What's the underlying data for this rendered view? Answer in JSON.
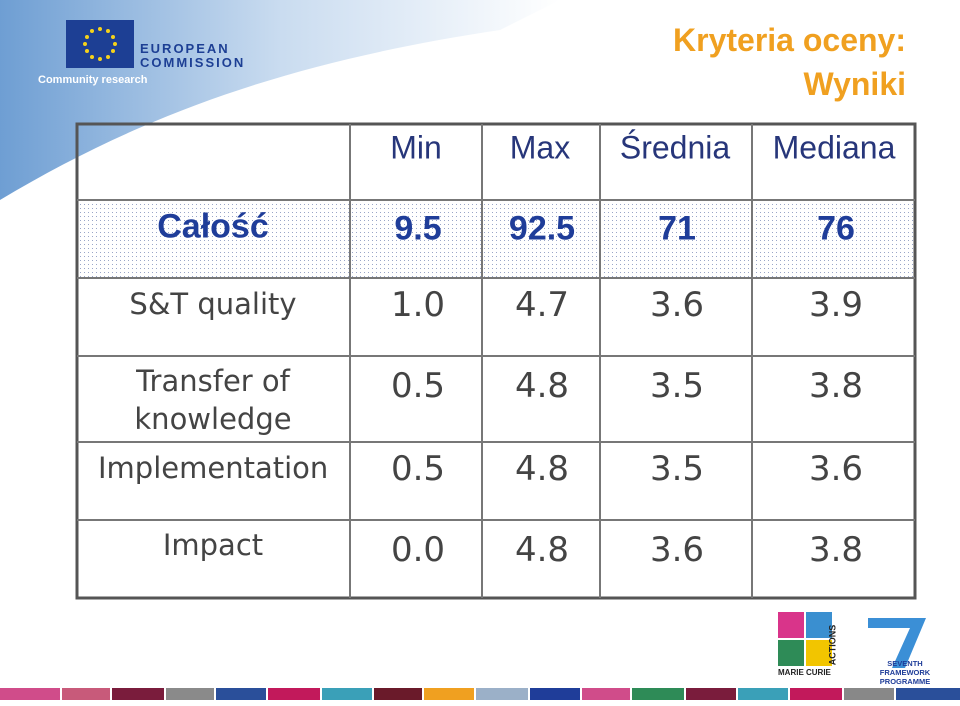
{
  "header": {
    "logo_line1": "EUROPEAN",
    "logo_line2": "COMMISSION",
    "logo_sub": "Community research",
    "title_line1": "Kryteria oceny:",
    "title_line2": "Wyniki"
  },
  "table": {
    "columns": [
      "Min",
      "Max",
      "Średnia",
      "Mediana"
    ],
    "rows": [
      {
        "label": "Całość",
        "values": [
          "9.5",
          "92.5",
          "71",
          "76"
        ]
      },
      {
        "label": "S&T quality",
        "values": [
          "1.0",
          "4.7",
          "3.6",
          "3.9"
        ]
      },
      {
        "label": "Transfer of knowledge",
        "values": [
          "0.5",
          "4.8",
          "3.5",
          "3.8"
        ]
      },
      {
        "label": "Implementation",
        "values": [
          "0.5",
          "4.8",
          "3.5",
          "3.6"
        ]
      },
      {
        "label": "Impact",
        "values": [
          "0.0",
          "4.8",
          "3.6",
          "3.8"
        ]
      }
    ]
  },
  "footer": {
    "mc_name": "MARIE CURIE",
    "mc_actions": "ACTIONS",
    "fp7_line1": "SEVENTH FRAMEWORK",
    "fp7_line2": "PROGRAMME"
  }
}
